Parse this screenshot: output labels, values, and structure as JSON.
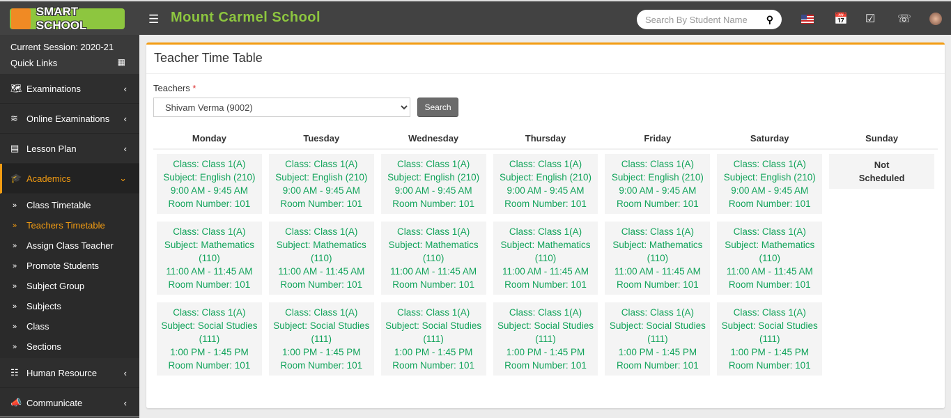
{
  "header": {
    "logo_text": "SMART SCHOOL",
    "school_name": "Mount Carmel School",
    "search_placeholder": "Search By Student Name",
    "icons": [
      "flag-us-icon",
      "calendar-icon",
      "checkbox-icon",
      "whatsapp-icon",
      "avatar"
    ]
  },
  "sidebar": {
    "session": "Current Session: 2020-21",
    "quick_links": "Quick Links",
    "menu_top": [
      {
        "label": "Examinations",
        "icon": "map-icon"
      },
      {
        "label": "Online Examinations",
        "icon": "rss-icon"
      },
      {
        "label": "Lesson Plan",
        "icon": "list-icon"
      }
    ],
    "active": {
      "label": "Academics",
      "icon": "graduation-cap-icon"
    },
    "sub": [
      "Class Timetable",
      "Teachers Timetable",
      "Assign Class Teacher",
      "Promote Students",
      "Subject Group",
      "Subjects",
      "Class",
      "Sections"
    ],
    "active_sub": "Teachers Timetable",
    "menu_bottom": [
      {
        "label": "Human Resource",
        "icon": "sitemap-icon"
      },
      {
        "label": "Communicate",
        "icon": "bullhorn-icon"
      }
    ]
  },
  "main": {
    "title": "Teacher Time Table",
    "teachers_label": "Teachers",
    "required": "*",
    "teacher_selected": "Shivam Verma (9002)",
    "search_button": "Search",
    "days": [
      "Monday",
      "Tuesday",
      "Wednesday",
      "Thursday",
      "Friday",
      "Saturday",
      "Sunday"
    ],
    "periods": [
      {
        "class": "Class: Class 1(A)",
        "subject": "Subject: English (210)",
        "time": "9:00 AM - 9:45 AM",
        "room": "Room Number: 101"
      },
      {
        "class": "Class: Class 1(A)",
        "subject": "Subject: Mathematics (110)",
        "time": "11:00 AM - 11:45 AM",
        "room": "Room Number: 101"
      },
      {
        "class": "Class: Class 1(A)",
        "subject": "Subject: Social Studies (111)",
        "time": "1:00 PM - 1:45 PM",
        "room": "Room Number: 101"
      }
    ],
    "scheduled_days": [
      "Monday",
      "Tuesday",
      "Wednesday",
      "Thursday",
      "Friday",
      "Saturday"
    ],
    "not_scheduled": "Not Scheduled"
  },
  "colors": {
    "accent": "#f39c12",
    "brand_green": "#8dc63f",
    "entry_text": "#11a35a"
  }
}
